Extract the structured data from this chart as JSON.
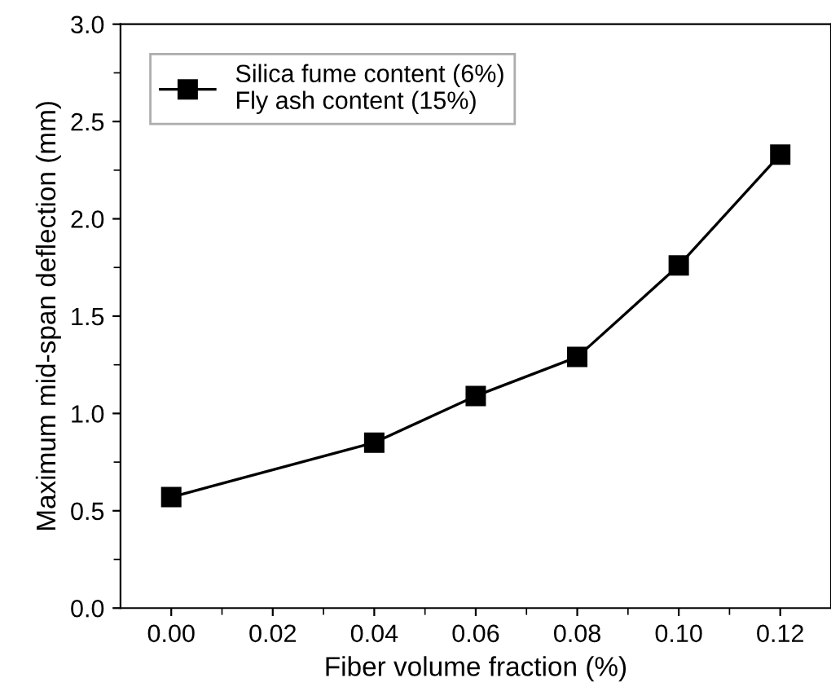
{
  "chart_data": {
    "type": "line",
    "xlabel": "Fiber volume fraction (%)",
    "ylabel": "Maximum mid-span deflection (mm)",
    "x": [
      0.0,
      0.04,
      0.06,
      0.08,
      0.1,
      0.12
    ],
    "series": [
      {
        "name": "Silica fume content (6%)\nFly ash content (15%)",
        "color": "#000000",
        "values": [
          0.57,
          0.85,
          1.09,
          1.29,
          1.76,
          2.33
        ]
      }
    ],
    "xlim": [
      -0.01,
      0.13
    ],
    "ylim": [
      0,
      3.0
    ],
    "xticks": [
      {
        "value": 0.0,
        "label": "0.00"
      },
      {
        "value": 0.02,
        "label": "0.02"
      },
      {
        "value": 0.04,
        "label": "0.04"
      },
      {
        "value": 0.06,
        "label": "0.06"
      },
      {
        "value": 0.08,
        "label": "0.08"
      },
      {
        "value": 0.1,
        "label": "0.10"
      },
      {
        "value": 0.12,
        "label": "0.12"
      }
    ],
    "yticks": [
      {
        "value": 0,
        "label": "0.0"
      },
      {
        "value": 0.5,
        "label": "0.5"
      },
      {
        "value": 1.0,
        "label": "1.0"
      },
      {
        "value": 1.5,
        "label": "1.5"
      },
      {
        "value": 2.0,
        "label": "2.0"
      },
      {
        "value": 2.5,
        "label": "2.5"
      },
      {
        "value": 3.0,
        "label": "3.0"
      }
    ],
    "marker": "square",
    "line_style": "solid",
    "grid": false,
    "legend": "top left"
  }
}
